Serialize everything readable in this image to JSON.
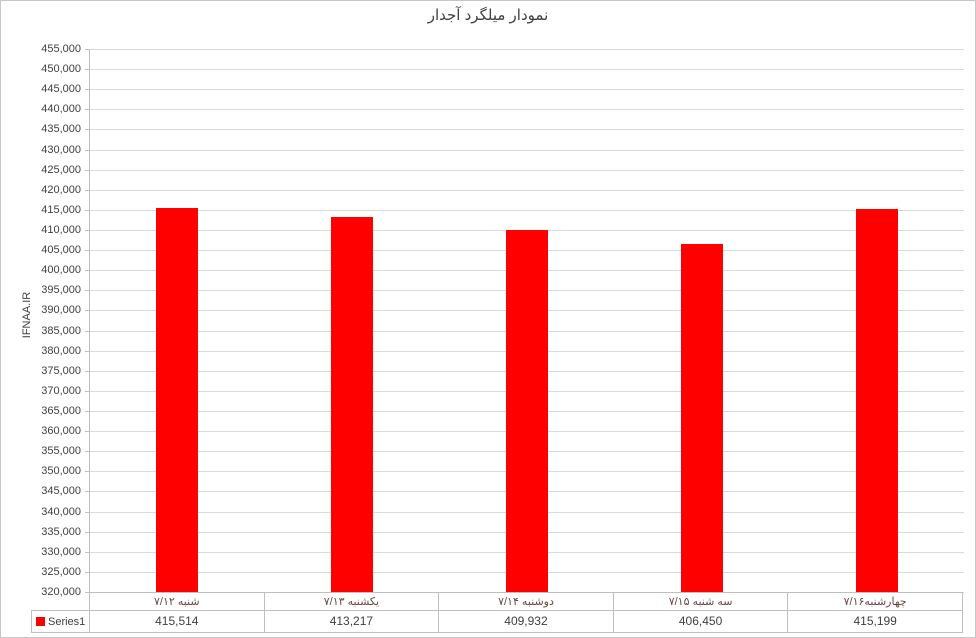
{
  "header": {
    "title": "نمودار میلگرد آجدار"
  },
  "y_axis": {
    "label": "IFNAA.IR"
  },
  "legend": {
    "label": "Series1",
    "color": "#FF0000"
  },
  "colors": {
    "bar": "#FF0000",
    "gridline": "#D9D9D9",
    "border": "#BFBFBF",
    "category_text": "#6B4742",
    "value_text": "#404040"
  },
  "chart_data": {
    "type": "bar",
    "title": "نمودار میلگرد آجدار",
    "xlabel": "",
    "ylabel": "IFNAA.IR",
    "categories": [
      "شنبه ۷/۱۲",
      "یکشنبه ۷/۱۳",
      "دوشنبه ۷/۱۴",
      "سه شنبه ۷/۱۵",
      "چهارشنبه۷/۱۶"
    ],
    "series": [
      {
        "name": "Series1",
        "color": "#FF0000",
        "values": [
          415514,
          413217,
          409932,
          406450,
          415199
        ],
        "value_labels": [
          "415,514",
          "413,217",
          "409,932",
          "406,450",
          "415,199"
        ]
      }
    ],
    "ylim": [
      320000,
      455000
    ],
    "y_tick_step": 5000,
    "y_ticks": [
      "455,000",
      "450,000",
      "445,000",
      "440,000",
      "435,000",
      "430,000",
      "425,000",
      "420,000",
      "415,000",
      "410,000",
      "405,000",
      "400,000",
      "395,000",
      "390,000",
      "385,000",
      "380,000",
      "375,000",
      "370,000",
      "365,000",
      "360,000",
      "355,000",
      "350,000",
      "345,000",
      "340,000",
      "335,000",
      "330,000",
      "325,000",
      "320,000"
    ],
    "grid": true,
    "legend_position": "bottom-left-data-table"
  }
}
